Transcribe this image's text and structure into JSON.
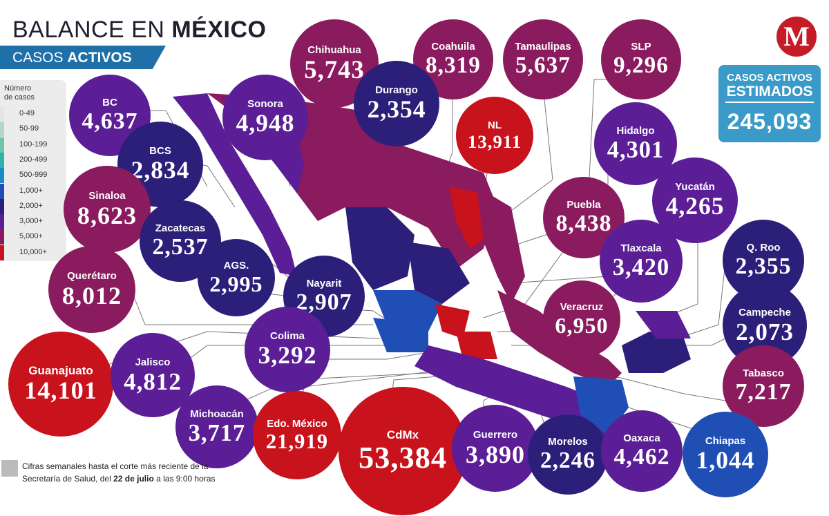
{
  "title": {
    "prefix": "BALANCE EN",
    "bold": "MÉXICO"
  },
  "subtitle": {
    "prefix": "CASOS",
    "bold": "ACTIVOS"
  },
  "legend": {
    "heading_1": "Número",
    "heading_2": "de casos",
    "items": [
      {
        "label": "0-49",
        "color": "#e3e6e5"
      },
      {
        "label": "50-99",
        "color": "#b4d6c9"
      },
      {
        "label": "100-199",
        "color": "#6fc4ad"
      },
      {
        "label": "200-499",
        "color": "#2eb3a6"
      },
      {
        "label": "500-999",
        "color": "#1f89c7"
      },
      {
        "label": "1,000+",
        "color": "#1f4fb4"
      },
      {
        "label": "2,000+",
        "color": "#2b1f7a"
      },
      {
        "label": "3,000+",
        "color": "#5b1e96"
      },
      {
        "label": "5,000+",
        "color": "#8a1b5e"
      },
      {
        "label": "10,000+",
        "color": "#c8121c"
      }
    ]
  },
  "estimated": {
    "line1": "CASOS ACTIVOS",
    "line2": "ESTIMADOS",
    "value": "245,093"
  },
  "logo": {
    "letter": "M",
    "color": "#c51c26"
  },
  "footnote": {
    "line1": "Cifras semanales hasta el corte más reciente de la",
    "line2_prefix": "Secretaría de Salud, del",
    "line2_bold": "22 de julio",
    "line2_suffix": "a las 9:00 horas"
  },
  "states": [
    {
      "name": "BC",
      "value": "4,637",
      "color": "#5b1e96"
    },
    {
      "name": "Sonora",
      "value": "4,948",
      "color": "#5b1e96"
    },
    {
      "name": "Chihuahua",
      "value": "5,743",
      "color": "#8a1b5e"
    },
    {
      "name": "Coahuila",
      "value": "8,319",
      "color": "#8a1b5e"
    },
    {
      "name": "Tamaulipas",
      "value": "5,637",
      "color": "#8a1b5e"
    },
    {
      "name": "SLP",
      "value": "9,296",
      "color": "#8a1b5e"
    },
    {
      "name": "BCS",
      "value": "2,834",
      "color": "#2b1f7a"
    },
    {
      "name": "Durango",
      "value": "2,354",
      "color": "#2b1f7a"
    },
    {
      "name": "NL",
      "value": "13,911",
      "color": "#c8121c"
    },
    {
      "name": "Hidalgo",
      "value": "4,301",
      "color": "#5b1e96"
    },
    {
      "name": "Sinaloa",
      "value": "8,623",
      "color": "#8a1b5e"
    },
    {
      "name": "Zacatecas",
      "value": "2,537",
      "color": "#2b1f7a"
    },
    {
      "name": "Puebla",
      "value": "8,438",
      "color": "#8a1b5e"
    },
    {
      "name": "Yucatán",
      "value": "4,265",
      "color": "#5b1e96"
    },
    {
      "name": "AGS.",
      "value": "2,995",
      "color": "#2b1f7a"
    },
    {
      "name": "Tlaxcala",
      "value": "3,420",
      "color": "#5b1e96"
    },
    {
      "name": "Q. Roo",
      "value": "2,355",
      "color": "#2b1f7a"
    },
    {
      "name": "Querétaro",
      "value": "8,012",
      "color": "#8a1b5e"
    },
    {
      "name": "Nayarit",
      "value": "2,907",
      "color": "#2b1f7a"
    },
    {
      "name": "Veracruz",
      "value": "6,950",
      "color": "#8a1b5e"
    },
    {
      "name": "Campeche",
      "value": "2,073",
      "color": "#2b1f7a"
    },
    {
      "name": "Colima",
      "value": "3,292",
      "color": "#5b1e96"
    },
    {
      "name": "Guanajuato",
      "value": "14,101",
      "color": "#c8121c"
    },
    {
      "name": "Jalisco",
      "value": "4,812",
      "color": "#5b1e96"
    },
    {
      "name": "Tabasco",
      "value": "7,217",
      "color": "#8a1b5e"
    },
    {
      "name": "Michoacán",
      "value": "3,717",
      "color": "#5b1e96"
    },
    {
      "name": "Edo. México",
      "value": "21,919",
      "color": "#c8121c"
    },
    {
      "name": "CdMx",
      "value": "53,384",
      "color": "#c8121c"
    },
    {
      "name": "Guerrero",
      "value": "3,890",
      "color": "#5b1e96"
    },
    {
      "name": "Morelos",
      "value": "2,246",
      "color": "#2b1f7a"
    },
    {
      "name": "Oaxaca",
      "value": "4,462",
      "color": "#5b1e96"
    },
    {
      "name": "Chiapas",
      "value": "1,044",
      "color": "#1f4fb4"
    }
  ]
}
